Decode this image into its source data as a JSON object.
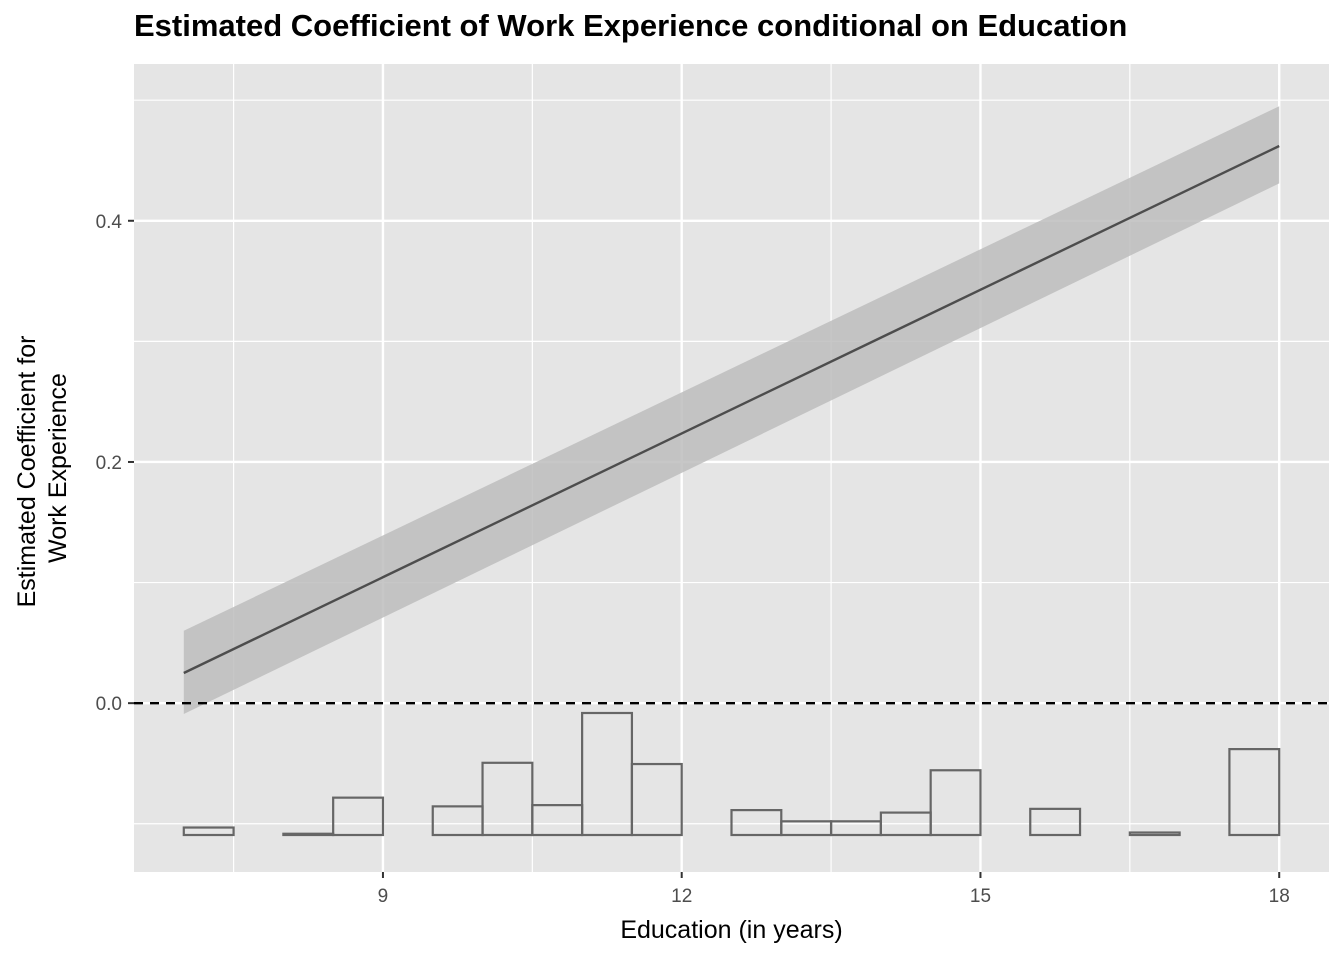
{
  "chart_data": {
    "type": "line",
    "title": "Estimated Coefficient of Work Experience conditional on Education",
    "xlabel": "Education (in years)",
    "ylabel_lines": [
      "Estimated Coefficient for",
      "Work Experience"
    ],
    "xlim": [
      6.5,
      18.5
    ],
    "ylim": [
      -0.14,
      0.53
    ],
    "x_ticks": [
      9,
      12,
      15,
      18
    ],
    "y_ticks": [
      0.0,
      0.2,
      0.4
    ],
    "y_tick_labels": [
      "0.0",
      "0.2",
      "0.4"
    ],
    "grid": true,
    "reference_line": {
      "y": 0.0,
      "style": "dashed"
    },
    "series": [
      {
        "x": [
          7,
          18
        ],
        "y": [
          0.025,
          0.462
        ],
        "ci_lower": [
          -0.009,
          0.431
        ],
        "ci_upper": [
          0.06,
          0.495
        ]
      }
    ],
    "histogram": {
      "bin_width": 0.5,
      "bins": [
        {
          "x0": 7.0,
          "count": 6
        },
        {
          "x0": 7.5,
          "count": 0
        },
        {
          "x0": 8.0,
          "count": 1
        },
        {
          "x0": 8.5,
          "count": 30
        },
        {
          "x0": 9.0,
          "count": 0
        },
        {
          "x0": 9.5,
          "count": 23
        },
        {
          "x0": 10.0,
          "count": 58
        },
        {
          "x0": 10.5,
          "count": 24
        },
        {
          "x0": 11.0,
          "count": 98
        },
        {
          "x0": 11.5,
          "count": 57
        },
        {
          "x0": 12.0,
          "count": 0
        },
        {
          "x0": 12.5,
          "count": 20
        },
        {
          "x0": 13.0,
          "count": 11
        },
        {
          "x0": 13.5,
          "count": 11
        },
        {
          "x0": 14.0,
          "count": 18
        },
        {
          "x0": 14.5,
          "count": 52
        },
        {
          "x0": 15.0,
          "count": 0
        },
        {
          "x0": 15.5,
          "count": 21
        },
        {
          "x0": 16.0,
          "count": 0
        },
        {
          "x0": 16.5,
          "count": 2
        },
        {
          "x0": 17.0,
          "count": 0
        },
        {
          "x0": 17.5,
          "count": 69
        }
      ]
    },
    "colors": {
      "panel_background": "#e5e5e5",
      "grid": "#ffffff",
      "line": "#4d4d4d",
      "ribbon": "#bdbdbd",
      "histogram_stroke": "#666666",
      "reference_line": "#000000"
    }
  }
}
